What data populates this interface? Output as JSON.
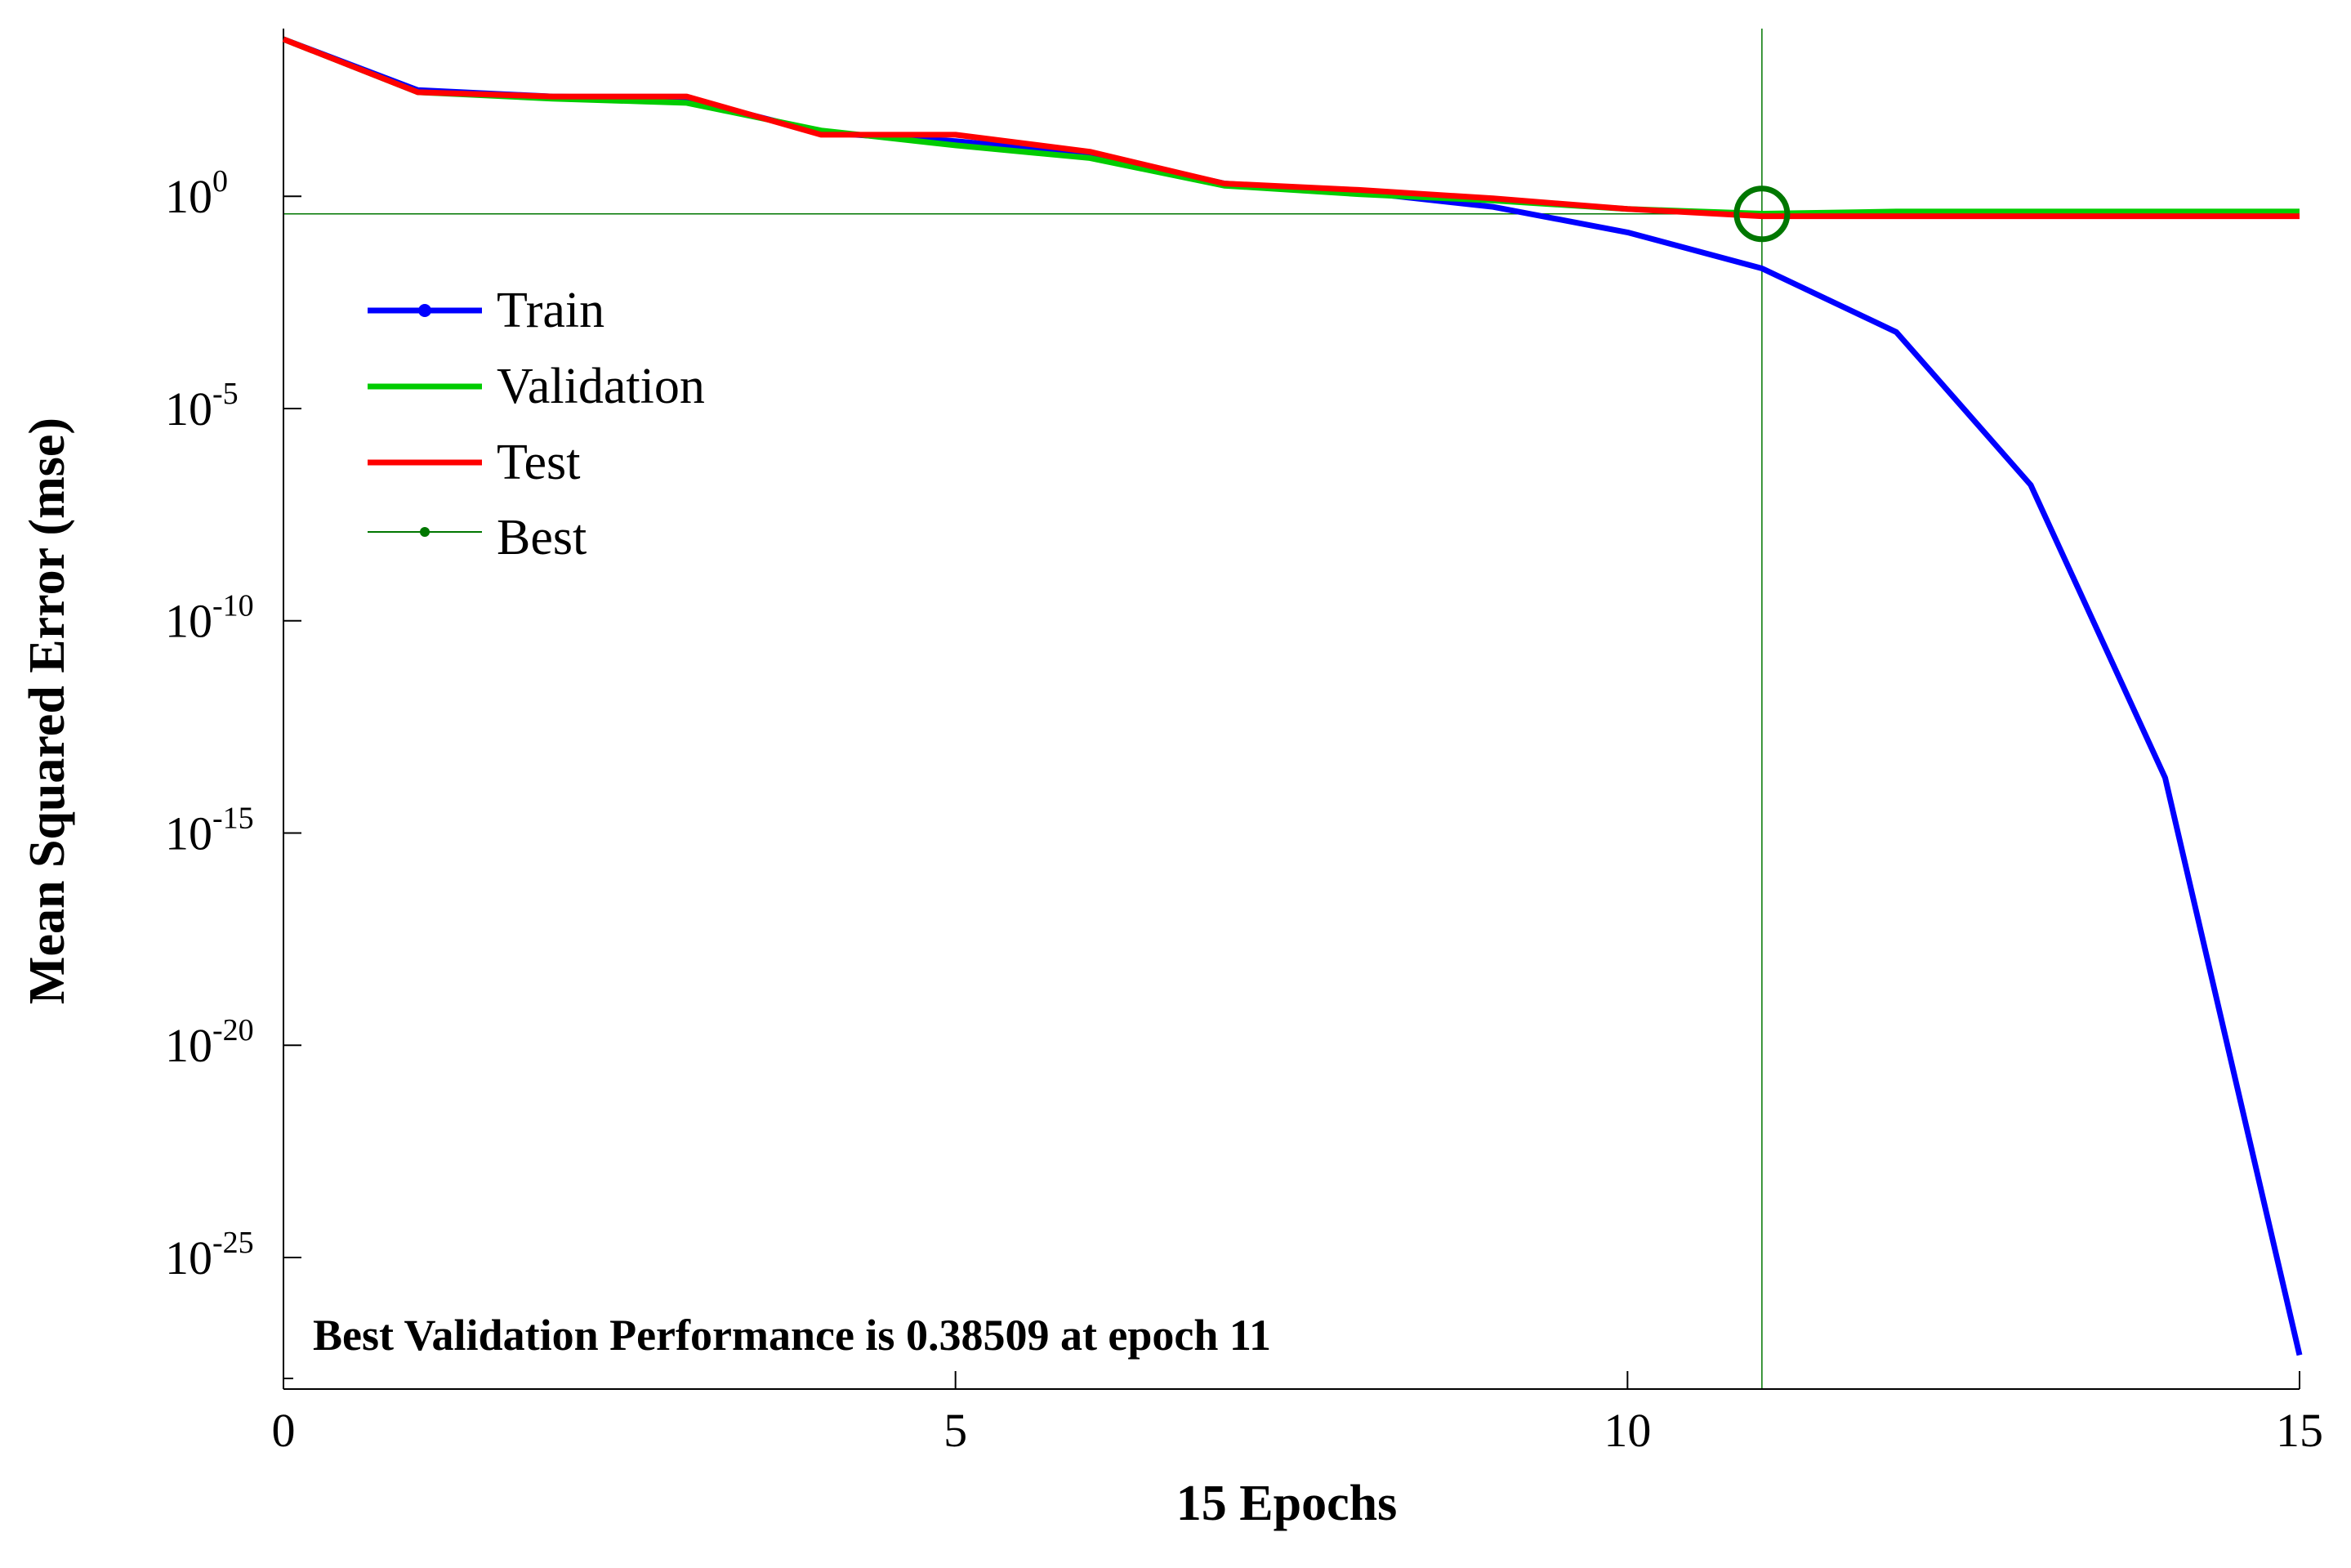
{
  "chart_data": {
    "type": "line",
    "yscale": "log",
    "x": [
      0,
      1,
      2,
      3,
      4,
      5,
      6,
      7,
      8,
      9,
      10,
      11,
      12,
      13,
      14,
      15
    ],
    "xlim": [
      0,
      15
    ],
    "ylim_exponent": [
      -28,
      4
    ],
    "xticks": [
      0,
      5,
      10,
      15
    ],
    "xtick_labels": [
      "0",
      "5",
      "10",
      "15"
    ],
    "yticks": [
      {
        "base": "10",
        "exp": "0",
        "exponent": 0
      },
      {
        "base": "10",
        "exp": "-5",
        "exponent": -5
      },
      {
        "base": "10",
        "exp": "-10",
        "exponent": -10
      },
      {
        "base": "10",
        "exp": "-15",
        "exponent": -15
      },
      {
        "base": "10",
        "exp": "-20",
        "exponent": -20
      },
      {
        "base": "10",
        "exp": "-25",
        "exponent": -25
      }
    ],
    "xlabel": "15 Epochs",
    "ylabel": "Mean Squared Error  (mse)",
    "series": [
      {
        "name": "Train",
        "color": "#0000ff",
        "exponents": [
          3.7,
          2.5,
          2.35,
          2.3,
          1.5,
          1.3,
          1.0,
          0.3,
          0.1,
          -0.25,
          -0.85,
          -1.7,
          -3.2,
          -6.8,
          -13.7,
          -27.3
        ]
      },
      {
        "name": "Validation",
        "color": "#00cc00",
        "exponents": [
          3.7,
          2.45,
          2.3,
          2.2,
          1.55,
          1.2,
          0.9,
          0.25,
          0.05,
          -0.1,
          -0.3,
          -0.41,
          -0.36,
          -0.36,
          -0.36,
          -0.36
        ]
      },
      {
        "name": "Test",
        "color": "#ff0000",
        "exponents": [
          3.7,
          2.45,
          2.35,
          2.35,
          1.45,
          1.45,
          1.05,
          0.3,
          0.15,
          -0.05,
          -0.3,
          -0.47,
          -0.47,
          -0.47,
          -0.47,
          -0.47
        ]
      }
    ],
    "best": {
      "name": "Best",
      "color": "#007700",
      "epoch": 11,
      "value": 0.38509,
      "exponent": -0.415
    },
    "legend": {
      "placement": "top-left",
      "entries": [
        "Train",
        "Validation",
        "Test",
        "Best"
      ]
    },
    "annotation": "Best Validation Performance is 0.38509 at epoch 11"
  }
}
